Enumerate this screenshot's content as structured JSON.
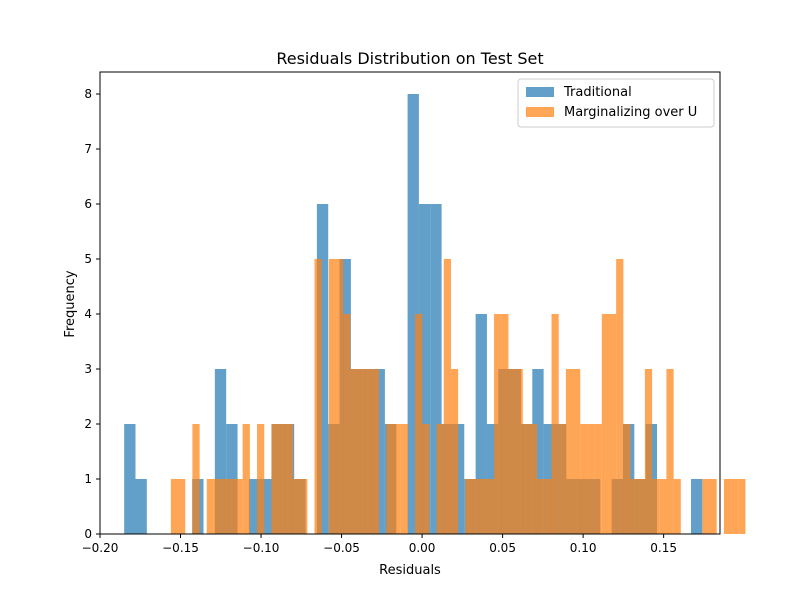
{
  "chart_data": {
    "type": "bar",
    "title": "Residuals Distribution on Test Set",
    "xlabel": "Residuals",
    "ylabel": "Frequency",
    "xlim": [
      -0.2,
      0.185
    ],
    "ylim": [
      0,
      8.4
    ],
    "xticks": [
      -0.2,
      -0.15,
      -0.1,
      -0.05,
      0.0,
      0.05,
      0.1,
      0.15
    ],
    "xtick_labels": [
      "−0.20",
      "−0.15",
      "−0.10",
      "−0.05",
      "0.00",
      "0.05",
      "0.10",
      "0.15"
    ],
    "yticks": [
      0,
      1,
      2,
      3,
      4,
      5,
      6,
      7,
      8
    ],
    "ytick_labels": [
      "0",
      "1",
      "2",
      "3",
      "4",
      "5",
      "6",
      "7",
      "8"
    ],
    "grid": false,
    "legend_position": "top-right",
    "series": [
      {
        "name": "Traditional",
        "color": "#1f77b4",
        "opacity": 0.7,
        "bin_start": -0.185,
        "bin_width": 0.00704,
        "counts": [
          2,
          1,
          0,
          0,
          0,
          0,
          1,
          0,
          3,
          2,
          0,
          1,
          1,
          2,
          2,
          1,
          0,
          6,
          2,
          5,
          3,
          3,
          3,
          2,
          0,
          8,
          6,
          6,
          2,
          2,
          1,
          4,
          2,
          3,
          3,
          2,
          3,
          2,
          2,
          1,
          1,
          1,
          0,
          1,
          2,
          1,
          2,
          0,
          0,
          0,
          1
        ]
      },
      {
        "name": "Marginalizing over U",
        "color": "#ff7f0e",
        "opacity": 0.7,
        "bin_start": -0.156,
        "bin_width": 0.00446,
        "counts": [
          1,
          1,
          0,
          2,
          0,
          1,
          1,
          1,
          1,
          1,
          2,
          0,
          2,
          0,
          2,
          2,
          2,
          1,
          1,
          0,
          5,
          0,
          5,
          5,
          4,
          3,
          3,
          3,
          3,
          0,
          2,
          2,
          2,
          0,
          4,
          2,
          0,
          2,
          5,
          3,
          0,
          1,
          1,
          1,
          1,
          4,
          4,
          3,
          3,
          2,
          2,
          1,
          1,
          4,
          2,
          3,
          3,
          2,
          2,
          2,
          4,
          4,
          5,
          2,
          1,
          1,
          3,
          1,
          1,
          3,
          1,
          0,
          0,
          0,
          1,
          1,
          0,
          1,
          1,
          1
        ]
      }
    ]
  }
}
